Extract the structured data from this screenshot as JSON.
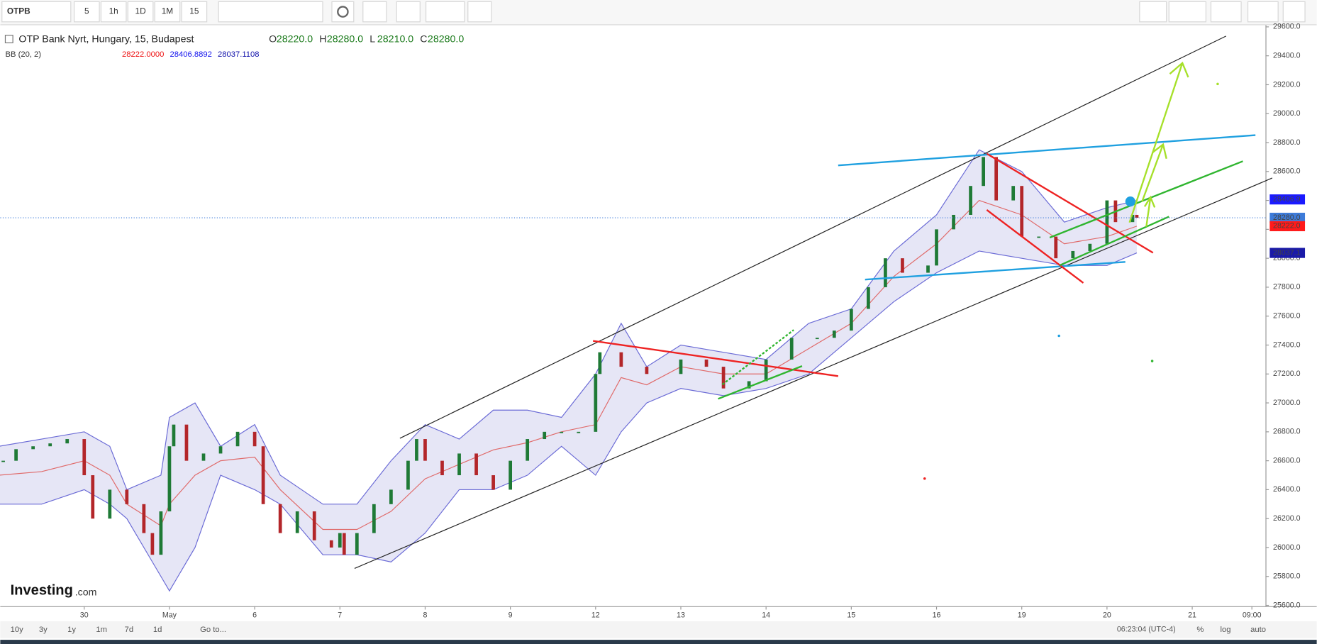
{
  "toolbar": {
    "symbol": "OTPB",
    "intervals": [
      "5",
      "1h",
      "1D",
      "1M",
      "15"
    ]
  },
  "header": {
    "title": "OTP Bank Nyrt, Hungary, 15, Budapest",
    "ohlc": [
      {
        "label": "O",
        "value": "28220.0"
      },
      {
        "label": "H",
        "value": "28280.0"
      },
      {
        "label": "L",
        "value": "28210.0"
      },
      {
        "label": "C",
        "value": "28280.0"
      }
    ],
    "indicator": "BB (20, 2)",
    "indicator_values": [
      "28222.0000",
      "28406.8892",
      "28037.1108"
    ]
  },
  "chart_data": {
    "type": "candlestick",
    "xlim": [
      -0.985,
      13.86
    ],
    "ylim": [
      25600,
      29600
    ],
    "xticks": [
      {
        "value": 0,
        "label": "30"
      },
      {
        "value": 1,
        "label": "May"
      },
      {
        "value": 2,
        "label": "6"
      },
      {
        "value": 3,
        "label": "7"
      },
      {
        "value": 4,
        "label": "8"
      },
      {
        "value": 5,
        "label": "9"
      },
      {
        "value": 6,
        "label": "12"
      },
      {
        "value": 7,
        "label": "13"
      },
      {
        "value": 8,
        "label": "14"
      },
      {
        "value": 9,
        "label": "15"
      },
      {
        "value": 10,
        "label": "16"
      },
      {
        "value": 11,
        "label": "19"
      },
      {
        "value": 12,
        "label": "20"
      },
      {
        "value": 13,
        "label": "21"
      },
      {
        "value": 13.7,
        "label": "09:00"
      }
    ],
    "yticks": [
      {
        "value": 25600,
        "label": "25600.0"
      },
      {
        "value": 25800,
        "label": "25800.0"
      },
      {
        "value": 26000,
        "label": "26000.0"
      },
      {
        "value": 26200,
        "label": "26200.0"
      },
      {
        "value": 26400,
        "label": "26400.0"
      },
      {
        "value": 26600,
        "label": "26600.0"
      },
      {
        "value": 26800,
        "label": "26800.0"
      },
      {
        "value": 27000,
        "label": "27000.0"
      },
      {
        "value": 27200,
        "label": "27200.0"
      },
      {
        "value": 27400,
        "label": "27400.0"
      },
      {
        "value": 27600,
        "label": "27600.0"
      },
      {
        "value": 27800,
        "label": "27800.0"
      },
      {
        "value": 28000,
        "label": "28000.0"
      },
      {
        "value": 28200,
        "label": "28200.0"
      },
      {
        "value": 28400,
        "label": "28400.0"
      },
      {
        "value": 28600,
        "label": "28600.0"
      },
      {
        "value": 28800,
        "label": "28800.0"
      },
      {
        "value": 29000,
        "label": "29000.0"
      },
      {
        "value": 29200,
        "label": "29200.0"
      },
      {
        "value": 29400,
        "label": "29400.0"
      },
      {
        "value": 29600,
        "label": "29600.0"
      }
    ],
    "candles": {
      "up_color": "#1f7a36",
      "down_color": "#b3262a",
      "x": [
        -0.95,
        -0.8,
        -0.6,
        -0.4,
        -0.2,
        0,
        0.1,
        0.3,
        0.5,
        0.7,
        0.8,
        0.9,
        1.0,
        1.05,
        1.2,
        1.4,
        1.6,
        1.8,
        2.0,
        2.1,
        2.3,
        2.5,
        2.7,
        2.9,
        3.0,
        3.05,
        3.2,
        3.4,
        3.6,
        3.8,
        3.9,
        4.0,
        4.2,
        4.4,
        4.6,
        4.8,
        5.0,
        5.2,
        5.4,
        5.6,
        5.8,
        6.0,
        6.05,
        6.3,
        6.6,
        7.0,
        7.3,
        7.5,
        7.8,
        8.0,
        8.3,
        8.6,
        8.8,
        9.0,
        9.2,
        9.4,
        9.6,
        9.9,
        10.0,
        10.2,
        10.4,
        10.55,
        10.7,
        10.9,
        11.0,
        11.2,
        11.4,
        11.6,
        11.8,
        12.0,
        12.1,
        12.3,
        12.35
      ],
      "close": [
        26600,
        26680,
        26700,
        26720,
        26750,
        26500,
        26200,
        26400,
        26300,
        26100,
        25950,
        26250,
        26700,
        26850,
        26600,
        26650,
        26700,
        26800,
        26700,
        26300,
        26100,
        26250,
        26050,
        26000,
        26100,
        25950,
        26100,
        26300,
        26400,
        26600,
        26750,
        26600,
        26500,
        26650,
        26500,
        26400,
        26600,
        26750,
        26800,
        26800,
        26800,
        27200,
        27350,
        27250,
        27200,
        27300,
        27250,
        27100,
        27150,
        27300,
        27450,
        27450,
        27500,
        27650,
        27800,
        28000,
        27900,
        27950,
        28200,
        28300,
        28500,
        28700,
        28400,
        28500,
        28150,
        28150,
        28000,
        28050,
        28100,
        28400,
        28250,
        28300,
        28280
      ]
    },
    "bb": {
      "band_color": "#dcdcf2",
      "edge_color": "#6b6bd6",
      "mid_color": "#e06a6a",
      "x": [
        -1,
        -0.5,
        0,
        0.3,
        0.5,
        0.9,
        1.0,
        1.3,
        1.6,
        2.0,
        2.3,
        2.8,
        3.2,
        3.6,
        4.0,
        4.4,
        4.8,
        5.2,
        5.6,
        6.0,
        6.3,
        6.6,
        7.0,
        7.5,
        8.0,
        8.5,
        9.0,
        9.5,
        10.0,
        10.5,
        11.0,
        11.5,
        12.0,
        12.35
      ],
      "upper": [
        26700,
        26750,
        26800,
        26700,
        26400,
        26500,
        26900,
        27000,
        26700,
        26850,
        26500,
        26300,
        26300,
        26600,
        26850,
        26750,
        26950,
        26950,
        26900,
        27200,
        27550,
        27250,
        27400,
        27350,
        27300,
        27550,
        27650,
        28050,
        28300,
        28750,
        28600,
        28250,
        28350,
        28400
      ],
      "middle": [
        26500,
        26525,
        26600,
        26500,
        26300,
        26150,
        26300,
        26500,
        26600,
        26625,
        26400,
        26125,
        26125,
        26250,
        26475,
        26575,
        26675,
        26725,
        26800,
        26850,
        27175,
        27125,
        27250,
        27200,
        27200,
        27375,
        27550,
        27875,
        28100,
        28400,
        28300,
        28100,
        28150,
        28222
      ],
      "lower": [
        26300,
        26300,
        26400,
        26300,
        26200,
        25800,
        25700,
        26000,
        26500,
        26400,
        26300,
        25950,
        25950,
        25900,
        26100,
        26400,
        26400,
        26500,
        26700,
        26500,
        26800,
        27000,
        27100,
        27050,
        27100,
        27200,
        27450,
        27700,
        27900,
        28050,
        28000,
        27950,
        27950,
        28037
      ]
    },
    "price_tags": [
      {
        "value": 28406.9,
        "label": "28406.9",
        "color": "#1a1aff"
      },
      {
        "value": 28280,
        "label": "28280.0",
        "color": "#3d7bd9"
      },
      {
        "value": 28222,
        "label": "28222.0",
        "color": "#ff1a1a"
      },
      {
        "value": 28037.1,
        "label": "28037.1",
        "color": "#1a1aa8"
      }
    ]
  },
  "footer": {
    "logo": "Investing",
    "logo_suffix": ".com",
    "ranges": [
      "10y",
      "3y",
      "1y",
      "1m",
      "7d",
      "1d"
    ],
    "goto": "Go to...",
    "time": "06:23:04 (UTC-4)",
    "options": [
      "%",
      "log",
      "auto"
    ]
  }
}
